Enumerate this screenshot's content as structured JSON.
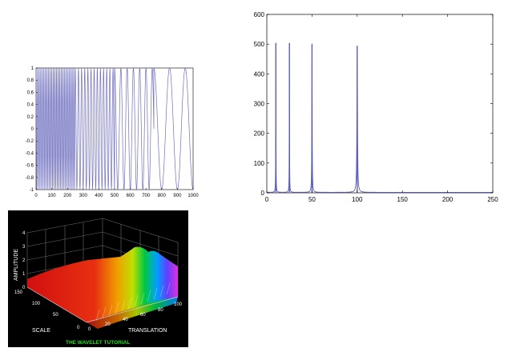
{
  "chart_data": [
    {
      "type": "line",
      "description_scope": "signal",
      "x": [
        0,
        250,
        500,
        750,
        1000
      ],
      "series": [
        {
          "segments": [
            {
              "x_start": 0,
              "x_end": 250,
              "cycles": 25
            },
            {
              "x_start": 250,
              "x_end": 500,
              "cycles": 12.5
            },
            {
              "x_start": 500,
              "x_end": 750,
              "cycles": 6.25
            },
            {
              "x_start": 750,
              "x_end": 1000,
              "cycles": 2.5
            }
          ],
          "amplitude": 1
        }
      ],
      "xlim": [
        0,
        1000
      ],
      "ylim": [
        -1,
        1
      ],
      "xticks": [
        "0",
        "100",
        "200",
        "300",
        "400",
        "500",
        "600",
        "700",
        "800",
        "900",
        "1000"
      ],
      "yticks": [
        "1",
        "0.8",
        "0.6",
        "0.4",
        "0.2",
        "0",
        "-0.2",
        "-0.4",
        "-0.6",
        "-0.8",
        "-1"
      ],
      "color": "#6f6fc0"
    },
    {
      "type": "line",
      "peaks": [
        {
          "x": 10,
          "y": 503
        },
        {
          "x": 25,
          "y": 503
        },
        {
          "x": 50,
          "y": 500
        },
        {
          "x": 100,
          "y": 494
        }
      ],
      "xlim": [
        0,
        250
      ],
      "ylim": [
        0,
        600
      ],
      "xticks": [
        "0",
        "50",
        "100",
        "150",
        "200",
        "250"
      ],
      "yticks": [
        "600",
        "500",
        "400",
        "300",
        "200",
        "100",
        "0"
      ],
      "color": "#5a5ab8"
    },
    {
      "type": "heatmap",
      "labels": {
        "z_axis": "AMPLITUDE",
        "y_axis": "SCALE",
        "x_axis": "TRANSLATION",
        "caption": "THE WAVELET TUTORIAL"
      },
      "z_ticks": [
        "0",
        "1",
        "2",
        "3",
        "4"
      ],
      "scale_ticks": [
        "0",
        "50",
        "100",
        "150"
      ],
      "translation_ticks": [
        "0",
        "20",
        "40",
        "60",
        "80",
        "100"
      ],
      "caption_color": "#22dd22"
    }
  ]
}
